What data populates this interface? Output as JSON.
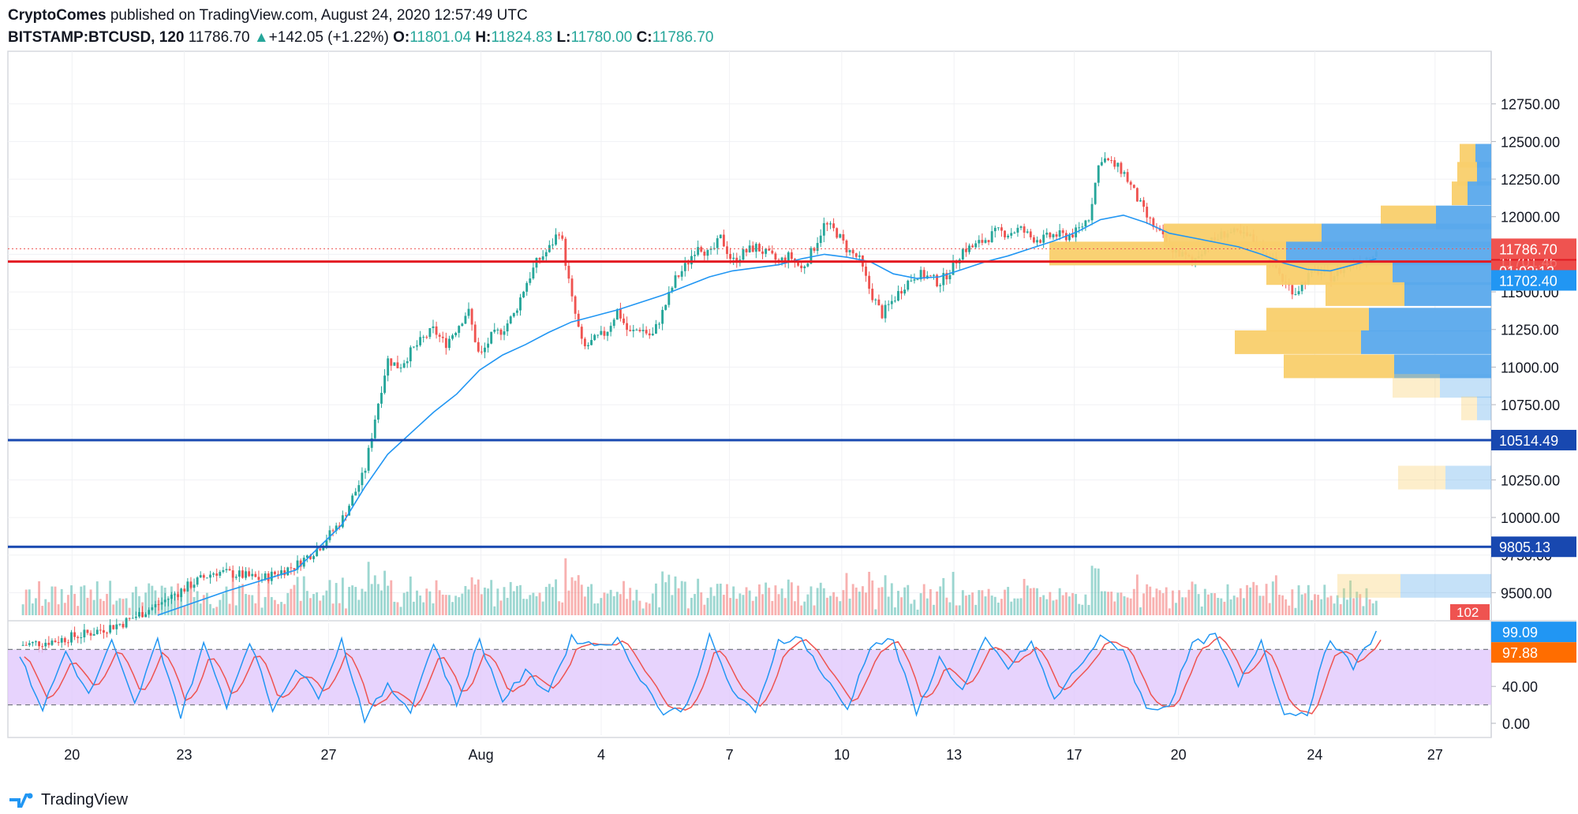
{
  "header": {
    "author": "CryptoComes",
    "published_text": "published on TradingView.com, August 24, 2020 12:57:49 UTC",
    "symbol": "BITSTAMP:BTCUSD,",
    "interval": "120",
    "last": "11786.70",
    "change_arrow": "▲",
    "change": "+142.05 (+1.22%)",
    "o_label": "O:",
    "o_value": "11801.04",
    "h_label": "H:",
    "h_value": "11824.83",
    "l_label": "L:",
    "l_value": "11780.00",
    "c_label": "C:",
    "c_value": "11786.70"
  },
  "footer": {
    "brand": "TradingView"
  },
  "colors": {
    "up": "#26a69a",
    "down": "#ef5350",
    "ma": "#2196f3",
    "resistance": "#e31b23",
    "support": "#1848b0",
    "vp_up": "#f9cf6b",
    "vp_down": "#5aa9ec",
    "stoch_k": "#2196f3",
    "stoch_d": "#ef5350",
    "stoch_band": "#e1c8fc"
  },
  "chart_data": {
    "type": "candlestick",
    "symbol": "BITSTAMP:BTCUSD",
    "price_axis_ticks": [
      "12750.00",
      "12500.00",
      "12250.00",
      "12000.00",
      "11750.00",
      "11500.00",
      "11250.00",
      "11000.00",
      "10750.00",
      "10500.00",
      "10250.00",
      "10000.00",
      "9750.00",
      "9500.00"
    ],
    "price_range": [
      9350,
      13100
    ],
    "date_axis_ticks": [
      "20",
      "23",
      "27",
      "Aug",
      "4",
      "7",
      "10",
      "13",
      "17",
      "20",
      "24",
      "27"
    ],
    "price_path": [
      [
        0,
        9150
      ],
      [
        3,
        9180
      ],
      [
        6,
        9230
      ],
      [
        9,
        9300
      ],
      [
        12,
        9420
      ],
      [
        15,
        9560
      ],
      [
        17,
        9640
      ],
      [
        19,
        9620
      ],
      [
        21,
        9590
      ],
      [
        24,
        9680
      ],
      [
        26,
        9800
      ],
      [
        28,
        9980
      ],
      [
        30,
        10300
      ],
      [
        31,
        10700
      ],
      [
        32,
        11050
      ],
      [
        33,
        11000
      ],
      [
        34,
        11100
      ],
      [
        35,
        11180
      ],
      [
        36,
        11250
      ],
      [
        37,
        11150
      ],
      [
        38,
        11260
      ],
      [
        39,
        11380
      ],
      [
        40,
        11060
      ],
      [
        41,
        11200
      ],
      [
        42,
        11250
      ],
      [
        43,
        11350
      ],
      [
        44,
        11550
      ],
      [
        45,
        11700
      ],
      [
        46,
        11780
      ],
      [
        47,
        11920
      ],
      [
        48,
        11460
      ],
      [
        49,
        11120
      ],
      [
        50,
        11180
      ],
      [
        51,
        11230
      ],
      [
        52,
        11380
      ],
      [
        53,
        11220
      ],
      [
        54,
        11260
      ],
      [
        55,
        11200
      ],
      [
        56,
        11380
      ],
      [
        57,
        11580
      ],
      [
        58,
        11680
      ],
      [
        59,
        11820
      ],
      [
        60,
        11740
      ],
      [
        61,
        11860
      ],
      [
        62,
        11700
      ],
      [
        63,
        11760
      ],
      [
        64,
        11800
      ],
      [
        65,
        11750
      ],
      [
        66,
        11700
      ],
      [
        67,
        11740
      ],
      [
        68,
        11650
      ],
      [
        69,
        11780
      ],
      [
        70,
        11950
      ],
      [
        71,
        11900
      ],
      [
        72,
        11780
      ],
      [
        73,
        11720
      ],
      [
        74,
        11500
      ],
      [
        75,
        11350
      ],
      [
        76,
        11450
      ],
      [
        77,
        11550
      ],
      [
        78,
        11620
      ],
      [
        79,
        11600
      ],
      [
        80,
        11560
      ],
      [
        81,
        11650
      ],
      [
        82,
        11780
      ],
      [
        83,
        11800
      ],
      [
        84,
        11850
      ],
      [
        85,
        11900
      ],
      [
        86,
        11890
      ],
      [
        87,
        11920
      ],
      [
        88,
        11860
      ],
      [
        89,
        11850
      ],
      [
        90,
        11880
      ],
      [
        91,
        11870
      ],
      [
        92,
        11900
      ],
      [
        93,
        12000
      ],
      [
        94,
        12400
      ],
      [
        95,
        12350
      ],
      [
        96,
        12300
      ],
      [
        97,
        12150
      ],
      [
        98,
        12000
      ],
      [
        99,
        11900
      ],
      [
        100,
        11800
      ],
      [
        101,
        11750
      ],
      [
        102,
        11700
      ],
      [
        103,
        11800
      ],
      [
        104,
        11850
      ],
      [
        105,
        11900
      ],
      [
        106,
        11880
      ],
      [
        107,
        11860
      ],
      [
        108,
        11800
      ],
      [
        109,
        11700
      ],
      [
        110,
        11560
      ],
      [
        111,
        11500
      ],
      [
        112,
        11600
      ],
      [
        113,
        11640
      ],
      [
        114,
        11600
      ],
      [
        115,
        11650
      ],
      [
        116,
        11700
      ],
      [
        117,
        11720
      ],
      [
        118,
        11786.7
      ]
    ],
    "moving_average": [
      [
        12,
        9350
      ],
      [
        18,
        9510
      ],
      [
        24,
        9650
      ],
      [
        28,
        9950
      ],
      [
        30,
        10200
      ],
      [
        32,
        10420
      ],
      [
        34,
        10560
      ],
      [
        36,
        10700
      ],
      [
        38,
        10820
      ],
      [
        40,
        10980
      ],
      [
        42,
        11080
      ],
      [
        44,
        11150
      ],
      [
        46,
        11230
      ],
      [
        48,
        11300
      ],
      [
        50,
        11340
      ],
      [
        52,
        11380
      ],
      [
        54,
        11430
      ],
      [
        56,
        11480
      ],
      [
        58,
        11540
      ],
      [
        60,
        11600
      ],
      [
        62,
        11640
      ],
      [
        64,
        11660
      ],
      [
        66,
        11680
      ],
      [
        68,
        11720
      ],
      [
        70,
        11750
      ],
      [
        72,
        11730
      ],
      [
        74,
        11700
      ],
      [
        76,
        11620
      ],
      [
        78,
        11590
      ],
      [
        80,
        11600
      ],
      [
        82,
        11650
      ],
      [
        84,
        11700
      ],
      [
        86,
        11740
      ],
      [
        88,
        11790
      ],
      [
        90,
        11840
      ],
      [
        92,
        11900
      ],
      [
        94,
        11980
      ],
      [
        96,
        12010
      ],
      [
        98,
        11960
      ],
      [
        100,
        11890
      ],
      [
        102,
        11860
      ],
      [
        104,
        11830
      ],
      [
        106,
        11800
      ],
      [
        108,
        11750
      ],
      [
        110,
        11690
      ],
      [
        112,
        11650
      ],
      [
        114,
        11640
      ],
      [
        116,
        11680
      ],
      [
        118,
        11720
      ]
    ],
    "horizontal_lines": [
      {
        "price": 11701.46,
        "label": "11701.46",
        "color": "#e31b23"
      },
      {
        "price": 10514.49,
        "label": "10514.49",
        "color": "#1848b0"
      },
      {
        "price": 9805.13,
        "label": "9805.13",
        "color": "#1848b0"
      }
    ],
    "price_labels": [
      {
        "price": 11786.7,
        "label": "11786.70",
        "color": "#ef5350"
      },
      {
        "price": 11742.0,
        "label": "01:02:13",
        "color": "#ef5350"
      },
      {
        "price": 11702.4,
        "label": "11702.40",
        "color": "#2196f3"
      }
    ],
    "volume_label": "102",
    "volume_profile": [
      {
        "price": 12400,
        "up": 20,
        "down": 20
      },
      {
        "price": 12280,
        "up": 25,
        "down": 18
      },
      {
        "price": 12150,
        "up": 20,
        "down": 30
      },
      {
        "price": 11990,
        "up": 70,
        "down": 70
      },
      {
        "price": 11870,
        "up": 200,
        "down": 215
      },
      {
        "price": 11750,
        "up": 300,
        "down": 260
      },
      {
        "price": 11620,
        "up": 160,
        "down": 125
      },
      {
        "price": 11480,
        "up": 100,
        "down": 110
      },
      {
        "price": 11310,
        "up": 130,
        "down": 155
      },
      {
        "price": 11160,
        "up": 160,
        "down": 165
      },
      {
        "price": 11000,
        "up": 140,
        "down": 123
      },
      {
        "price": 10870,
        "up": 60,
        "down": 65,
        "faded": true
      },
      {
        "price": 10720,
        "up": 20,
        "down": 18,
        "faded": true
      },
      {
        "price": 10260,
        "up": 60,
        "down": 58,
        "faded": true
      },
      {
        "price": 9540,
        "up": 80,
        "down": 115,
        "faded": true
      }
    ],
    "stochastic": {
      "ticks": [
        "0.00",
        "40.00"
      ],
      "upper_band": 80,
      "lower_band": 20,
      "k_label": "99.09",
      "d_label": "97.88",
      "k_path": [
        [
          0,
          72
        ],
        [
          2,
          15
        ],
        [
          4,
          78
        ],
        [
          6,
          30
        ],
        [
          8,
          88
        ],
        [
          10,
          20
        ],
        [
          12,
          90
        ],
        [
          14,
          8
        ],
        [
          16,
          85
        ],
        [
          18,
          20
        ],
        [
          20,
          90
        ],
        [
          22,
          15
        ],
        [
          24,
          60
        ],
        [
          26,
          30
        ],
        [
          28,
          90
        ],
        [
          30,
          5
        ],
        [
          32,
          40
        ],
        [
          34,
          15
        ],
        [
          36,
          88
        ],
        [
          38,
          20
        ],
        [
          40,
          90
        ],
        [
          42,
          25
        ],
        [
          44,
          55
        ],
        [
          46,
          35
        ],
        [
          48,
          92
        ],
        [
          50,
          85
        ],
        [
          52,
          90
        ],
        [
          54,
          50
        ],
        [
          56,
          10
        ],
        [
          58,
          18
        ],
        [
          60,
          93
        ],
        [
          62,
          35
        ],
        [
          64,
          10
        ],
        [
          66,
          90
        ],
        [
          68,
          92
        ],
        [
          70,
          50
        ],
        [
          72,
          15
        ],
        [
          74,
          85
        ],
        [
          76,
          90
        ],
        [
          78,
          10
        ],
        [
          80,
          70
        ],
        [
          82,
          35
        ],
        [
          84,
          90
        ],
        [
          86,
          60
        ],
        [
          88,
          88
        ],
        [
          90,
          25
        ],
        [
          92,
          60
        ],
        [
          94,
          92
        ],
        [
          96,
          80
        ],
        [
          98,
          15
        ],
        [
          100,
          20
        ],
        [
          102,
          85
        ],
        [
          104,
          95
        ],
        [
          106,
          40
        ],
        [
          108,
          90
        ],
        [
          110,
          10
        ],
        [
          112,
          12
        ],
        [
          114,
          92
        ],
        [
          116,
          60
        ],
        [
          118,
          99
        ]
      ]
    }
  }
}
